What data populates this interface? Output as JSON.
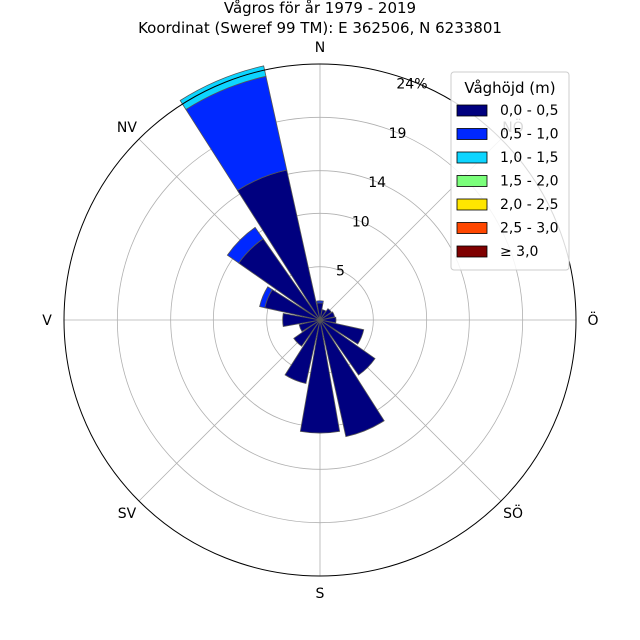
{
  "chart_data": {
    "type": "polar-bar",
    "title": "Vågros för år 1979 - 2019",
    "subtitle": "Koordinat (Sweref 99 TM): E 362506, N 6233801",
    "direction_labels": [
      "N",
      "NV",
      "V",
      "SV",
      "S",
      "SÖ",
      "Ö",
      "NÖ"
    ],
    "direction_angles_deg": [
      0,
      315,
      270,
      225,
      180,
      135,
      90,
      45
    ],
    "radial_ticks": [
      5,
      10,
      14,
      19
    ],
    "radial_max_label": "24%",
    "radial_max": 24,
    "legend": {
      "title": "Våghöjd (m)",
      "placement": "top-right",
      "entries": [
        {
          "label": "0,0 - 0,5",
          "color": "#00007f"
        },
        {
          "label": "0,5 - 1,0",
          "color": "#0028ff"
        },
        {
          "label": "1,0 - 1,5",
          "color": "#0dd5ff"
        },
        {
          "label": "1,5 - 2,0",
          "color": "#7bff7b"
        },
        {
          "label": "2,0 - 2,5",
          "color": "#ffe600"
        },
        {
          "label": "2,5 - 3,0",
          "color": "#ff4700"
        },
        {
          "label": "≥ 3,0",
          "color": "#7f0000"
        }
      ]
    },
    "bin_width_deg": 20,
    "sectors": [
      {
        "dir_deg": 0,
        "stack": [
          1.6,
          0.2
        ]
      },
      {
        "dir_deg": 22.5,
        "stack": [
          1.0
        ]
      },
      {
        "dir_deg": 45,
        "stack": [
          1.3
        ]
      },
      {
        "dir_deg": 67.5,
        "stack": [
          1.4
        ]
      },
      {
        "dir_deg": 90,
        "stack": [
          1.5
        ]
      },
      {
        "dir_deg": 112.5,
        "stack": [
          4.2
        ]
      },
      {
        "dir_deg": 135,
        "stack": [
          6.3
        ]
      },
      {
        "dir_deg": 157.5,
        "stack": [
          11.2
        ]
      },
      {
        "dir_deg": 180,
        "stack": [
          10.6
        ]
      },
      {
        "dir_deg": 202.5,
        "stack": [
          6.1
        ]
      },
      {
        "dir_deg": 225,
        "stack": [
          3.0
        ]
      },
      {
        "dir_deg": 247.5,
        "stack": [
          2.0
        ]
      },
      {
        "dir_deg": 270,
        "stack": [
          3.5
        ]
      },
      {
        "dir_deg": 292.5,
        "stack": [
          5.3,
          0.5
        ]
      },
      {
        "dir_deg": 315,
        "stack": [
          9.3,
          1.3
        ]
      },
      {
        "dir_deg": 337.5,
        "stack": [
          14.4,
          9.0,
          1.0
        ]
      }
    ]
  }
}
